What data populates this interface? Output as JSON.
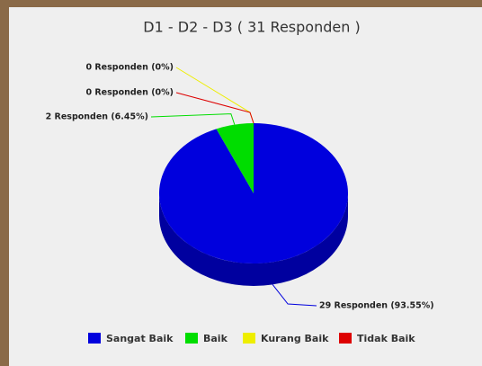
{
  "chart_data": {
    "type": "pie3d",
    "title": "D1 - D2 - D3 ( 31 Responden )",
    "categories": [
      "Sangat Baik",
      "Baik",
      "Kurang Baik",
      "Tidak Baik"
    ],
    "values": [
      29,
      2,
      0,
      0
    ],
    "value_labels": [
      "29 Responden (93.55%)",
      "2 Responden (6.45%)",
      "0 Responden (0%)",
      "0 Responden (0%)"
    ],
    "colors": [
      "#0000dd",
      "#00dd00",
      "#eeee00",
      "#dd0000"
    ],
    "legend": "bottom"
  }
}
